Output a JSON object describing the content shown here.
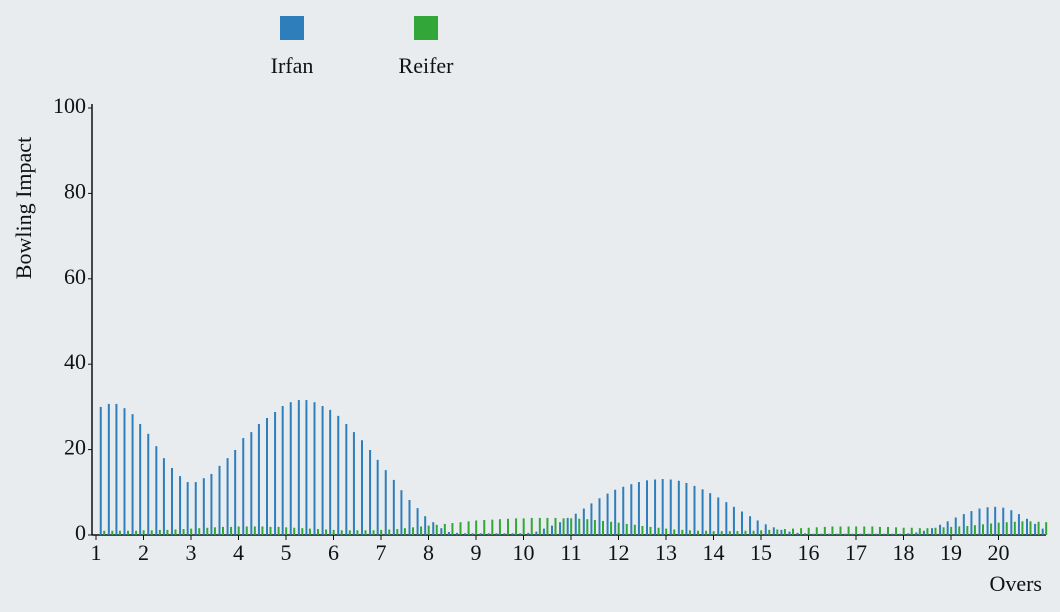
{
  "chart_data": {
    "type": "bar",
    "legend_position": "top",
    "xlabel": "Overs",
    "ylabel": "Bowling Impact",
    "xlim": [
      1,
      21
    ],
    "xticks": [
      1,
      2,
      3,
      4,
      5,
      6,
      7,
      8,
      9,
      10,
      11,
      12,
      13,
      14,
      15,
      16,
      17,
      18,
      19,
      20
    ],
    "ylim": [
      0,
      100
    ],
    "yticks": [
      0,
      20,
      40,
      60,
      80,
      100
    ],
    "x": [
      1.1,
      1.27,
      1.43,
      1.6,
      1.77,
      1.93,
      2.1,
      2.27,
      2.43,
      2.6,
      2.77,
      2.93,
      3.1,
      3.27,
      3.43,
      3.6,
      3.77,
      3.93,
      4.1,
      4.27,
      4.43,
      4.6,
      4.77,
      4.93,
      5.1,
      5.27,
      5.43,
      5.6,
      5.77,
      5.93,
      6.1,
      6.27,
      6.43,
      6.6,
      6.77,
      6.93,
      7.1,
      7.27,
      7.43,
      7.6,
      7.77,
      7.93,
      8.1,
      8.27,
      8.43,
      8.6,
      8.77,
      8.93,
      9.1,
      9.27,
      9.43,
      9.6,
      9.77,
      9.93,
      10.1,
      10.27,
      10.43,
      10.6,
      10.77,
      10.93,
      11.1,
      11.27,
      11.43,
      11.6,
      11.77,
      11.93,
      12.1,
      12.27,
      12.43,
      12.6,
      12.77,
      12.93,
      13.1,
      13.27,
      13.43,
      13.6,
      13.77,
      13.93,
      14.1,
      14.27,
      14.43,
      14.6,
      14.77,
      14.93,
      15.1,
      15.27,
      15.43,
      15.6,
      15.77,
      15.93,
      16.1,
      16.27,
      16.43,
      16.6,
      16.77,
      16.93,
      17.1,
      17.27,
      17.43,
      17.6,
      17.77,
      17.93,
      18.1,
      18.27,
      18.43,
      18.6,
      18.77,
      18.93,
      19.1,
      19.27,
      19.43,
      19.6,
      19.77,
      19.93,
      20.1,
      20.27,
      20.43,
      20.6,
      20.77,
      20.93
    ],
    "series": [
      {
        "name": "Irfan",
        "color": "#2f7ebc",
        "values": [
          30,
          30.7,
          30.7,
          29.7,
          28.3,
          26,
          23.7,
          20.8,
          18,
          15.7,
          13.8,
          12.4,
          12.4,
          13.3,
          14.3,
          16.2,
          18,
          19.9,
          22.7,
          24.1,
          26,
          27.4,
          28.8,
          30.2,
          31.1,
          31.6,
          31.6,
          31.1,
          30.2,
          29.3,
          27.9,
          26,
          24.1,
          22.2,
          19.9,
          17.6,
          15.2,
          12.9,
          10.5,
          8.2,
          6.3,
          4.4,
          3,
          1.6,
          0.7,
          0.5,
          0.4,
          0.4,
          0.4,
          0.4,
          0.4,
          0.4,
          0.4,
          0.4,
          0.5,
          0.8,
          1.5,
          2.2,
          3,
          4,
          5,
          6.2,
          7.4,
          8.6,
          9.7,
          10.6,
          11.3,
          11.9,
          12.4,
          12.8,
          13,
          13.1,
          13,
          12.7,
          12.2,
          11.5,
          10.7,
          9.8,
          8.8,
          7.7,
          6.6,
          5.5,
          4.4,
          3.4,
          2.5,
          1.8,
          1.2,
          0.8,
          0.5,
          0.4,
          0.3,
          0.3,
          0.3,
          0.3,
          0.3,
          0.3,
          0.3,
          0.3,
          0.3,
          0.3,
          0.3,
          0.3,
          0.4,
          0.6,
          1,
          1.6,
          2.4,
          3.2,
          4.1,
          4.9,
          5.6,
          6.2,
          6.5,
          6.6,
          6.4,
          5.8,
          4.9,
          3.8,
          2.6,
          1.5
        ]
      },
      {
        "name": "Reifer",
        "color": "#33a63a",
        "values": [
          1,
          1,
          1,
          1,
          1,
          1.1,
          1.1,
          1.2,
          1.2,
          1.3,
          1.4,
          1.5,
          1.6,
          1.7,
          1.8,
          1.9,
          1.9,
          2,
          2,
          2,
          2,
          1.9,
          1.9,
          1.8,
          1.7,
          1.6,
          1.5,
          1.4,
          1.3,
          1.2,
          1.1,
          1.1,
          1.1,
          1.1,
          1.1,
          1.2,
          1.3,
          1.4,
          1.6,
          1.8,
          2,
          2.2,
          2.4,
          2.6,
          2.8,
          3,
          3.2,
          3.4,
          3.5,
          3.6,
          3.7,
          3.8,
          3.9,
          3.9,
          4,
          4,
          4,
          4,
          3.9,
          3.9,
          3.8,
          3.7,
          3.5,
          3.3,
          3.1,
          2.9,
          2.6,
          2.4,
          2.1,
          1.9,
          1.7,
          1.5,
          1.3,
          1.2,
          1.1,
          1,
          1,
          0.9,
          0.9,
          0.9,
          0.9,
          1,
          1,
          1.1,
          1.2,
          1.3,
          1.4,
          1.5,
          1.6,
          1.7,
          1.8,
          1.9,
          2,
          2,
          2,
          2,
          2,
          2,
          1.9,
          1.9,
          1.8,
          1.7,
          1.7,
          1.6,
          1.6,
          1.7,
          1.8,
          1.9,
          2,
          2.1,
          2.3,
          2.5,
          2.7,
          2.9,
          3,
          3.1,
          3.2,
          3.2,
          3.1,
          3
        ]
      }
    ]
  }
}
